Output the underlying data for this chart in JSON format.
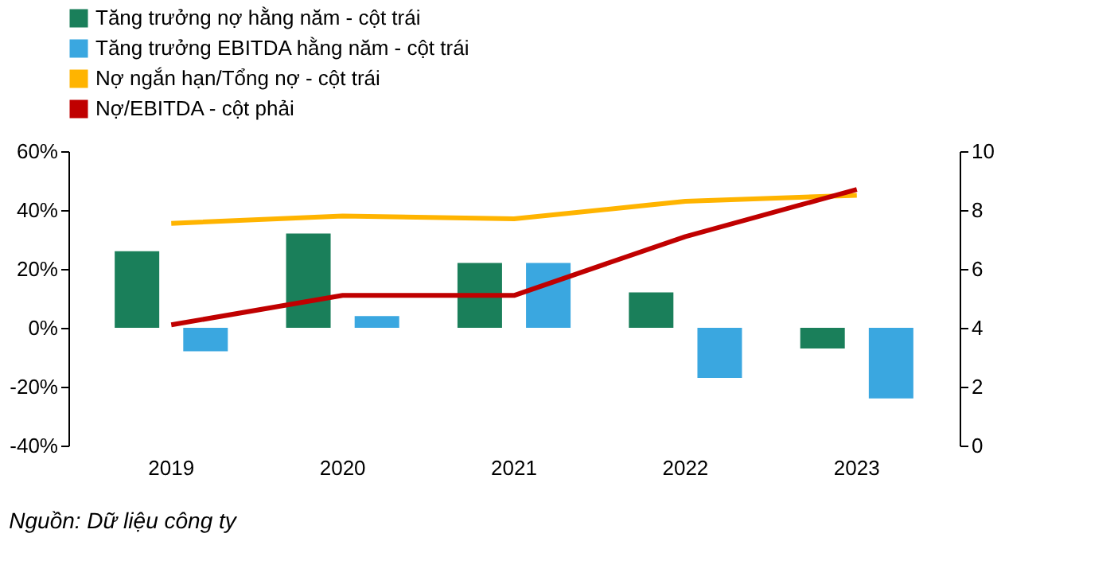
{
  "chart_data": {
    "type": "bar",
    "categories": [
      "2019",
      "2020",
      "2021",
      "2022",
      "2023"
    ],
    "series": [
      {
        "name": "Tăng trưởng nợ hằng năm - cột trái",
        "color": "#1a7f5a",
        "values": [
          26,
          32,
          22,
          12,
          -7
        ]
      },
      {
        "name": "Tăng trưởng EBITDA hằng năm - cột trái",
        "color": "#3aa7e0",
        "values": [
          -8,
          4,
          22,
          -17,
          -24
        ]
      },
      {
        "name": "Nợ ngắn hạn/Tổng nợ - cột trái",
        "type": "line",
        "color": "#ffb400",
        "values": [
          35.5,
          38,
          37,
          43,
          45
        ]
      },
      {
        "name": "Nợ/EBITDA - cột phải",
        "type": "line",
        "axis": "y2",
        "color": "#c00000",
        "values": [
          4.1,
          5.1,
          5.1,
          7.1,
          8.7
        ]
      }
    ],
    "ylim": [
      -40,
      60
    ],
    "yticks": [
      {
        "value": -40,
        "label": "-40%"
      },
      {
        "value": -20,
        "label": "-20%"
      },
      {
        "value": 0,
        "label": "0%"
      },
      {
        "value": 20,
        "label": "20%"
      },
      {
        "value": 40,
        "label": "40%"
      },
      {
        "value": 60,
        "label": "60%"
      }
    ],
    "y2lim": [
      0,
      10
    ],
    "y2ticks": [
      0,
      2,
      4,
      6,
      8,
      10
    ],
    "grid": false,
    "legend": "top",
    "annotations": [
      "Nguồn: Dữ liệu công ty"
    ]
  }
}
